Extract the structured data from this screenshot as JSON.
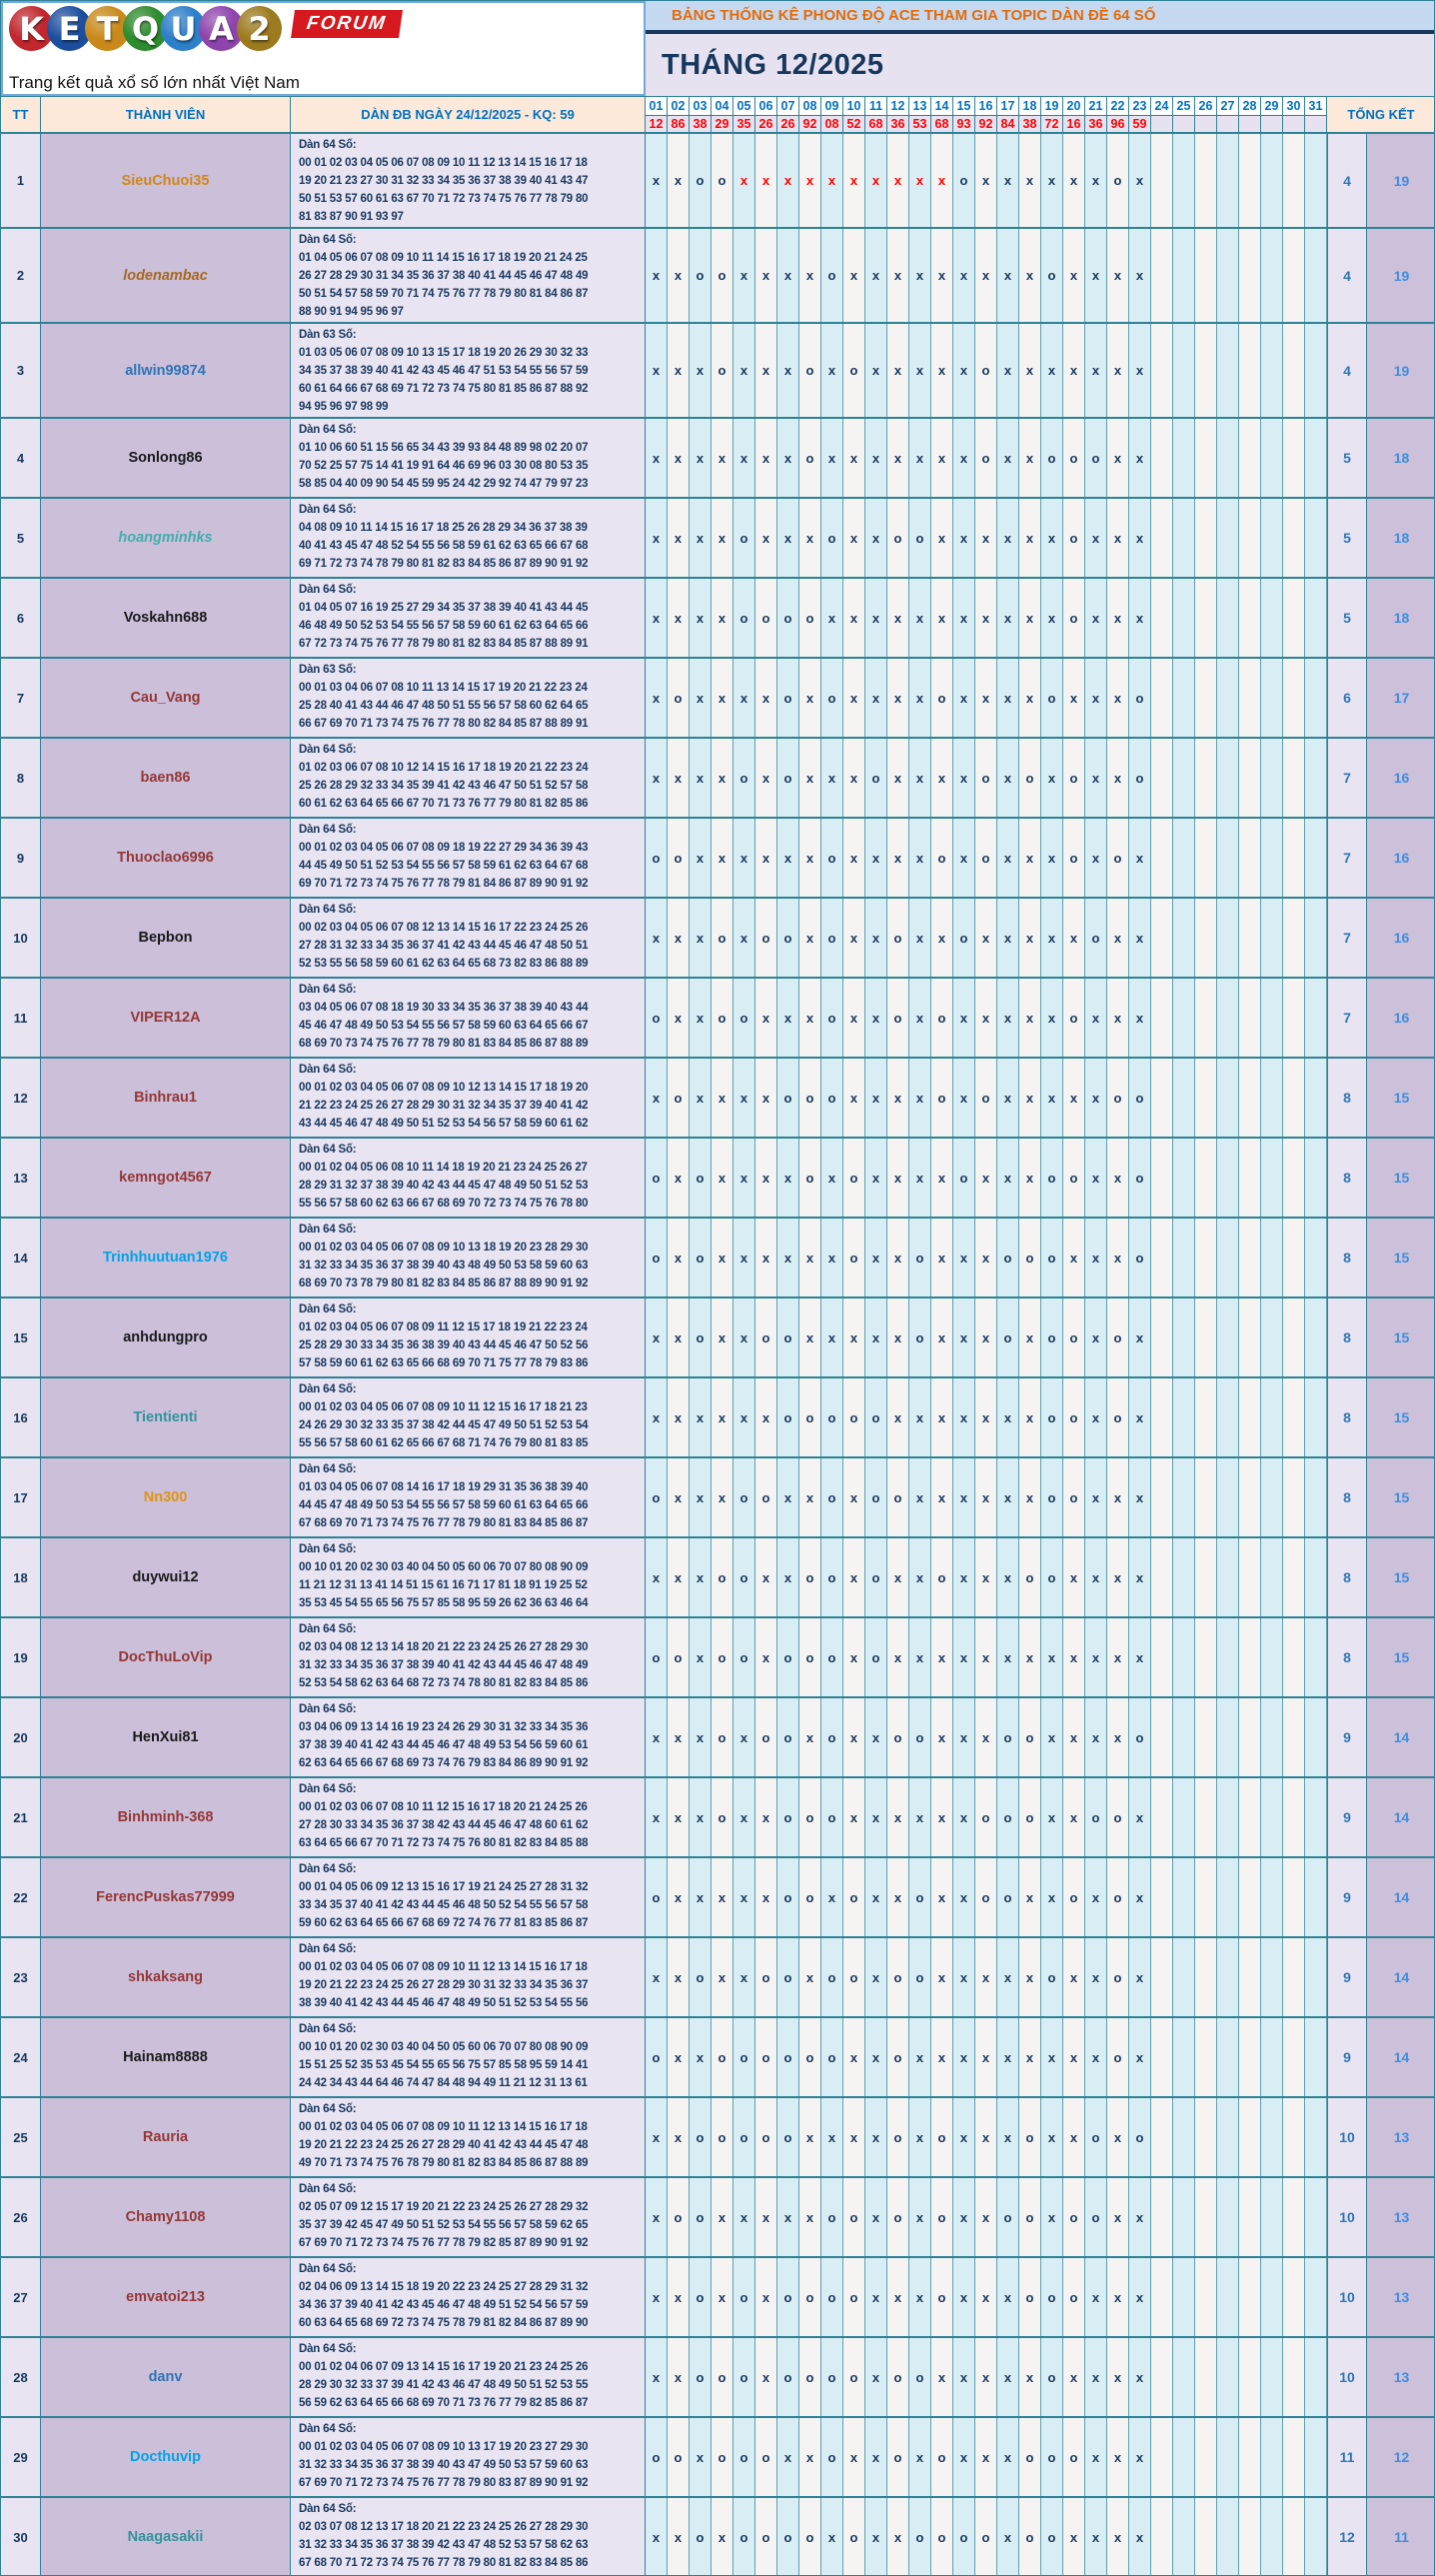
{
  "logo": {
    "letters": [
      {
        "ch": "K",
        "color": "#C1272D"
      },
      {
        "ch": "E",
        "color": "#1D4E9E"
      },
      {
        "ch": "T",
        "color": "#C98A1B"
      },
      {
        "ch": "Q",
        "color": "#2E8B2E"
      },
      {
        "ch": "U",
        "color": "#2C7FC9"
      },
      {
        "ch": "A",
        "color": "#8E44AD"
      },
      {
        "ch": "2",
        "color": "#9C7A1E"
      }
    ],
    "forum_badge": "FORUM",
    "tagline": "Trang kết quả xổ số lớn nhất Việt Nam"
  },
  "header": {
    "title": "BẢNG THỐNG KÊ PHONG ĐỘ ACE THAM GIA TOPIC DÀN ĐỀ 64 SỐ",
    "month": "THÁNG 12/2025",
    "title_color": "#E36C0A",
    "month_color": "#17375D"
  },
  "columns": {
    "tt": "TT",
    "member": "THÀNH VIÊN",
    "dan": "DÀN ĐB NGÀY 24/12/2025 - KQ: 59",
    "total": "TỔNG KẾT"
  },
  "days": [
    "01",
    "02",
    "03",
    "04",
    "05",
    "06",
    "07",
    "08",
    "09",
    "10",
    "11",
    "12",
    "13",
    "14",
    "15",
    "16",
    "17",
    "18",
    "19",
    "20",
    "21",
    "22",
    "23",
    "24",
    "25",
    "26",
    "27",
    "28",
    "29",
    "30",
    "31"
  ],
  "results": [
    "12",
    "86",
    "38",
    "29",
    "35",
    "26",
    "26",
    "92",
    "08",
    "52",
    "68",
    "36",
    "53",
    "68",
    "93",
    "92",
    "84",
    "38",
    "72",
    "16",
    "36",
    "96",
    "59",
    "",
    "",
    "",
    "",
    "",
    "",
    "",
    ""
  ],
  "mark_colors": {
    "normal": "#17375D",
    "red": "#FF0000"
  },
  "rows": [
    {
      "tt": "1",
      "name": "SieuChuoi35",
      "color": "#D18719",
      "italic": false,
      "label": "Dàn 64 Số:",
      "lines": [
        "00 01 02 03 04 05 06 07 08 09 10 11 12 13 14 15 16 17 18",
        "19 20 21 23 27 30 31 32 33 34 35 36 37 38 39 40 41 43 47",
        "50 51 53 57 60 61 63 67 70 71 72 73 74 75 76 77 78 79 80",
        "81 83 87 90 91 93 97"
      ],
      "marks": "xxooXXXXXXXXXXoxxxxxxox",
      "totals": [
        "4",
        "19"
      ]
    },
    {
      "tt": "2",
      "name": "lodenambac",
      "color": "#A66A1F",
      "italic": true,
      "label": "Dàn 64 Số:",
      "lines": [
        "01 04 05 06 07 08 09 10 11 14 15 16 17 18 19 20 21 24 25",
        "26 27 28 29 30 31 34 35 36 37 38 40 41 44 45 46 47 48 49",
        "50 51 54 57 58 59 70 71 74 75 76 77 78 79 80 81 84 86 87",
        "88 90 91 94 95 96 97"
      ],
      "marks": "xxooxxxxoxxxxxxxxxoxxxx",
      "totals": [
        "4",
        "19"
      ]
    },
    {
      "tt": "3",
      "name": "allwin99874",
      "color": "#2E74B5",
      "italic": false,
      "label": "Dàn 63 Số:",
      "lines": [
        "01 03 05 06 07 08 09 10 13 15 17 18 19 20 26 29 30 32 33",
        "34 35 37 38 39 40 41 42 43 45 46 47 51 53 54 55 56 57 59",
        "60 61 64 66 67 68 69 71 72 73 74 75 80 81 85 86 87 88 92",
        "94 95 96 97 98 99"
      ],
      "marks": "xxxoxxxoxoxxxxxoxxxxxxx",
      "totals": [
        "4",
        "19"
      ]
    },
    {
      "tt": "4",
      "name": "Sonlong86",
      "color": "#1A1A1A",
      "italic": false,
      "label": "Dàn 64 Số:",
      "lines": [
        "01 10 06 60 51 15 56 65 34 43 39 93 84 48 89 98 02 20 07",
        "70 52 25 57 75 14 41 19 91 64 46 69 96 03 30 08 80 53 35",
        "58 85 04 40 09 90 54 45 59 95 24 42 29 92 74 47 79 97 23"
      ],
      "marks": "xxxxxxxoxxxxxxxoxxoooxx",
      "totals": [
        "5",
        "18"
      ]
    },
    {
      "tt": "5",
      "name": "hoangminhks",
      "color": "#3FB0AC",
      "italic": true,
      "label": "Dàn 64 Số:",
      "lines": [
        "04 08 09 10 11 14 15 16 17 18 25 26 28 29 34 36 37 38 39",
        "40 41 43 45 47 48 52 54 55 56 58 59 61 62 63 65 66 67 68",
        "69 71 72 73 74 78 79 80 81 82 83 84 85 86 87 89 90 91 92"
      ],
      "marks": "xxxxoxxxoxxooxxxxxxoxxx",
      "totals": [
        "5",
        "18"
      ]
    },
    {
      "tt": "6",
      "name": "Voskahn688",
      "color": "#1A1A1A",
      "italic": false,
      "label": "Dàn 64 Số:",
      "lines": [
        "01 04 05 07 16 19 25 27 29 34 35 37 38 39 40 41 43 44 45",
        "46 48 49 50 52 53 54 55 56 57 58 59 60 61 62 63 64 65 66",
        "67 72 73 74 75 76 77 78 79 80 81 82 83 84 85 87 88 89 91"
      ],
      "marks": "xxxxooooxxxxxxxxxxxoxxx",
      "totals": [
        "5",
        "18"
      ]
    },
    {
      "tt": "7",
      "name": "Cau_Vang",
      "color": "#953735",
      "italic": false,
      "label": "Dàn 63 Số:",
      "lines": [
        "00 01 03 04 06 07 08 10 11 13 14 15 17 19 20 21 22 23 24",
        "25 28 40 41 43 44 46 47 48 50 51 55 56 57 58 60 62 64 65",
        "66 67 69 70 71 73 74 75 76 77 78 80 82 84 85 87 88 89 91"
      ],
      "marks": "xoxxxxoxoxxxxoxxxxoxxxo",
      "totals": [
        "6",
        "17"
      ]
    },
    {
      "tt": "8",
      "name": "baen86",
      "color": "#953735",
      "italic": false,
      "label": "Dàn 64 Số:",
      "lines": [
        "01 02 03 06 07 08 10 12 14 15 16 17 18 19 20 21 22 23 24",
        "25 26 28 29 32 33 34 35 39 41 42 43 46 47 50 51 52 57 58",
        "60 61 62 63 64 65 66 67 70 71 73 76 77 79 80 81 82 85 86"
      ],
      "marks": "xxxxoxoxxxoxxxxoxoxoxxo",
      "totals": [
        "7",
        "16"
      ]
    },
    {
      "tt": "9",
      "name": "Thuoclao6996",
      "color": "#953735",
      "italic": false,
      "label": "Dàn 64 Số:",
      "lines": [
        "00 01 02 03 04 05 06 07 08 09 18 19 22 27 29 34 36 39 43",
        "44 45 49 50 51 52 53 54 55 56 57 58 59 61 62 63 64 67 68",
        "69 70 71 72 73 74 75 76 77 78 79 81 84 86 87 89 90 91 92"
      ],
      "marks": "ooxxxxxxoxxxxoxoxxxoxox",
      "totals": [
        "7",
        "16"
      ]
    },
    {
      "tt": "10",
      "name": "Bepbon",
      "color": "#1A1A1A",
      "italic": false,
      "label": "Dàn 64 Số:",
      "lines": [
        "00 02 03 04 05 06 07 08 12 13 14 15 16 17 22 23 24 25 26",
        "27 28 31 32 33 34 35 36 37 41 42 43 44 45 46 47 48 50 51",
        "52 53 55 56 58 59 60 61 62 63 64 65 68 73 82 83 86 88 89"
      ],
      "marks": "xxxoxooxoxxoxxoxxxxxoxx",
      "totals": [
        "7",
        "16"
      ]
    },
    {
      "tt": "11",
      "name": "VIPER12A",
      "color": "#953735",
      "italic": false,
      "label": "Dàn 64 Số:",
      "lines": [
        "03 04 05 06 07 08 18 19 30 33 34 35 36 37 38 39 40 43 44",
        "45 46 47 48 49 50 53 54 55 56 57 58 59 60 63 64 65 66 67",
        "68 69 70 73 74 75 76 77 78 79 80 81 83 84 85 86 87 88 89"
      ],
      "marks": "oxxooxxxoxxoxoxxxxxoxxx",
      "totals": [
        "7",
        "16"
      ]
    },
    {
      "tt": "12",
      "name": "Binhrau1",
      "color": "#953735",
      "italic": false,
      "label": "Dàn 64 Số:",
      "lines": [
        "00 01 02 03 04 05 06 07 08 09 10 12 13 14 15 17 18 19 20",
        "21 22 23 24 25 26 27 28 29 30 31 32 34 35 37 39 40 41 42",
        "43 44 45 46 47 48 49 50 51 52 53 54 56 57 58 59 60 61 62"
      ],
      "marks": "xoxxxxoooxxxxoxoxxxxxoo",
      "totals": [
        "8",
        "15"
      ]
    },
    {
      "tt": "13",
      "name": "kemngot4567",
      "color": "#953735",
      "italic": false,
      "label": "Dàn 64 Số:",
      "lines": [
        "00 01 02 04 05 06 08 10 11 14 18 19 20 21 23 24 25 26 27",
        "28 29 31 32 37 38 39 40 42 43 44 45 47 48 49 50 51 52 53",
        "55 56 57 58 60 62 63 66 67 68 69 70 72 73 74 75 76 78 80"
      ],
      "marks": "oxoxxxxoxoxxxxoxxxooxxo",
      "totals": [
        "8",
        "15"
      ]
    },
    {
      "tt": "14",
      "name": "Trinhhuutuan1976",
      "color": "#00A3E8",
      "italic": false,
      "label": "Dàn 64 Số:",
      "lines": [
        "00 01 02 03 04 05 06 07 08 09 10 13 18 19 20 23 28 29 30",
        "31 32 33 34 35 36 37 38 39 40 43 48 49 50 53 58 59 60 63",
        "68 69 70 73 78 79 80 81 82 83 84 85 86 87 88 89 90 91 92"
      ],
      "marks": "oxoxxxxxxoxxoxxxoooxxxo",
      "totals": [
        "8",
        "15"
      ]
    },
    {
      "tt": "15",
      "name": "anhdungpro",
      "color": "#1A1A1A",
      "italic": false,
      "label": "Dàn 64 Số:",
      "lines": [
        "01 02 03 04 05 06 07 08 09 11 12 15 17 18 19 21 22 23 24",
        "25 28 29 30 33 34 35 36 38 39 40 43 44 45 46 47 50 52 56",
        "57 58 59 60 61 62 63 65 66 68 69 70 71 75 77 78 79 83 86"
      ],
      "marks": "xxoxxooxxxxxoxxxoxooxox",
      "totals": [
        "8",
        "15"
      ]
    },
    {
      "tt": "16",
      "name": "Tientienti",
      "color": "#31949B",
      "italic": false,
      "label": "Dàn 64 Số:",
      "lines": [
        "00 01 02 03 04 05 06 07 08 09 10 11 12 15 16 17 18 21 23",
        "24 26 29 30 32 33 35 37 38 42 44 45 47 49 50 51 52 53 54",
        "55 56 57 58 60 61 62 65 66 67 68 71 74 76 79 80 81 83 85"
      ],
      "marks": "xxxxxxoooooxxxxxxxooxox",
      "totals": [
        "8",
        "15"
      ]
    },
    {
      "tt": "17",
      "name": "Nn300",
      "color": "#E1940F",
      "italic": false,
      "label": "Dàn 64 Số:",
      "lines": [
        "01 03 04 05 06 07 08 14 16 17 18 19 29 31 35 36 38 39 40",
        "44 45 47 48 49 50 53 54 55 56 57 58 59 60 61 63 64 65 66",
        "67 68 69 70 71 73 74 75 76 77 78 79 80 81 83 84 85 86 87"
      ],
      "marks": "oxxxooxxoxooxxxxxxooxxx",
      "totals": [
        "8",
        "15"
      ]
    },
    {
      "tt": "18",
      "name": "duywui12",
      "color": "#1A1A1A",
      "italic": false,
      "label": "Dàn 64 Số:",
      "lines": [
        "00 10 01 20 02 30 03 40 04 50 05 60 06 70 07 80 08 90 09",
        "11 21 12 31 13 41 14 51 15 61 16 71 17 81 18 91 19 25 52",
        "35 53 45 54 55 65 56 75 57 85 58 95 59 26 62 36 63 46 64"
      ],
      "marks": "xxxooxxooxoxxoxxxooxxxx",
      "totals": [
        "8",
        "15"
      ]
    },
    {
      "tt": "19",
      "name": "DocThuLoVip",
      "color": "#953735",
      "italic": false,
      "label": "Dàn 64 Số:",
      "lines": [
        "02 03 04 08 12 13 14 18 20 21 22 23 24 25 26 27 28 29 30",
        "31 32 33 34 35 36 37 38 39 40 41 42 43 44 45 46 47 48 49",
        "52 53 54 58 62 63 64 68 72 73 74 78 80 81 82 83 84 85 86"
      ],
      "marks": "ooxooxoooxoxxxxxxxxxxxx",
      "totals": [
        "8",
        "15"
      ]
    },
    {
      "tt": "20",
      "name": "HenXui81",
      "color": "#1A1A1A",
      "italic": false,
      "label": "Dàn 64 Số:",
      "lines": [
        "03 04 06 09 13 14 16 19 23 24 26 29 30 31 32 33 34 35 36",
        "37 38 39 40 41 42 43 44 45 46 47 48 49 53 54 56 59 60 61",
        "62 63 64 65 66 67 68 69 73 74 76 79 83 84 86 89 90 91 92"
      ],
      "marks": "xxxoxooxoxxooxxxooxxxxo",
      "totals": [
        "9",
        "14"
      ]
    },
    {
      "tt": "21",
      "name": "Binhminh-368",
      "color": "#953735",
      "italic": false,
      "label": "Dàn 64 Số:",
      "lines": [
        "00 01 02 03 06 07 08 10 11 12 15 16 17 18 20 21 24 25 26",
        "27 28 30 33 34 35 36 37 38 42 43 44 45 46 47 48 60 61 62",
        "63 64 65 66 67 70 71 72 73 74 75 76 80 81 82 83 84 85 88"
      ],
      "marks": "xxxoxxoooxxxxxxoooxxoox",
      "totals": [
        "9",
        "14"
      ]
    },
    {
      "tt": "22",
      "name": "FerencPuskas77999",
      "color": "#953735",
      "italic": false,
      "label": "Dàn 64 Số:",
      "lines": [
        "00 01 04 05 06 09 12 13 15 16 17 19 21 24 25 27 28 31 32",
        "33 34 35 37 40 41 42 43 44 45 46 48 50 52 54 55 56 57 58",
        "59 60 62 63 64 65 66 67 68 69 72 74 76 77 81 83 85 86 87"
      ],
      "marks": "oxxxxxooxoxxoxxooxxoxox",
      "totals": [
        "9",
        "14"
      ]
    },
    {
      "tt": "23",
      "name": "shkaksang",
      "color": "#953735",
      "italic": false,
      "label": "Dàn 64 Số:",
      "lines": [
        "00 01 02 03 04 05 06 07 08 09 10 11 12 13 14 15 16 17 18",
        "19 20 21 22 23 24 25 26 27 28 29 30 31 32 33 34 35 36 37",
        "38 39 40 41 42 43 44 45 46 47 48 49 50 51 52 53 54 55 56"
      ],
      "marks": "xxoxxooxooxooxxxxxoxxox",
      "totals": [
        "9",
        "14"
      ]
    },
    {
      "tt": "24",
      "name": "Hainam8888",
      "color": "#1A1A1A",
      "italic": false,
      "label": "Dàn 64 Số:",
      "lines": [
        "00 10 01 20 02 30 03 40 04 50 05 60 06 70 07 80 08 90 09",
        "15 51 25 52 35 53 45 54 55 65 56 75 57 85 58 95 59 14 41",
        "24 42 34 43 44 64 46 74 47 84 48 94 49 11 21 12 31 13 61"
      ],
      "marks": "oxxooooooxxoxxxxxxxxxox",
      "totals": [
        "9",
        "14"
      ]
    },
    {
      "tt": "25",
      "name": "Rauria",
      "color": "#953735",
      "italic": false,
      "label": "Dàn 64 Số:",
      "lines": [
        "00 01 02 03 04 05 06 07 08 09 10 11 12 13 14 15 16 17 18",
        "19 20 21 22 23 24 25 26 27 28 29 40 41 42 43 44 45 47 48",
        "49 70 71 73 74 75 76 78 79 80 81 82 83 84 85 86 87 88 89"
      ],
      "marks": "xxoooooxxxxoxoxxxoxxoxo",
      "totals": [
        "10",
        "13"
      ]
    },
    {
      "tt": "26",
      "name": "Chamy1108",
      "color": "#953735",
      "italic": false,
      "label": "Dàn 64 Số:",
      "lines": [
        "02 05 07 09 12 15 17 19 20 21 22 23 24 25 26 27 28 29 32",
        "35 37 39 42 45 47 49 50 51 52 53 54 55 56 57 58 59 62 65",
        "67 69 70 71 72 73 74 75 76 77 78 79 82 85 87 89 90 91 92"
      ],
      "marks": "xooxxxxxooxoxoxxooxooxx",
      "totals": [
        "10",
        "13"
      ]
    },
    {
      "tt": "27",
      "name": "emvatoi213",
      "color": "#953735",
      "italic": false,
      "label": "Dàn 64 Số:",
      "lines": [
        "02 04 06 09 13 14 15 18 19 20 22 23 24 25 27 28 29 31 32",
        "34 36 37 39 40 41 42 43 45 46 47 48 49 51 52 54 56 57 59",
        "60 63 64 65 68 69 72 73 74 75 78 79 81 82 84 86 87 89 90"
      ],
      "marks": "xxoxoxooooxxxoxxxoooxxx",
      "totals": [
        "10",
        "13"
      ]
    },
    {
      "tt": "28",
      "name": "danv",
      "color": "#2E74B5",
      "italic": false,
      "label": "Dàn 64 Số:",
      "lines": [
        "00 01 02 04 06 07 09 13 14 15 16 17 19 20 21 23 24 25 26",
        "28 29 30 32 33 37 39 41 42 43 46 47 48 49 50 51 52 53 55",
        "56 59 62 63 64 65 66 68 69 70 71 73 76 77 79 82 85 86 87"
      ],
      "marks": "xxoooxooooxooxxxxxoxxxx",
      "totals": [
        "10",
        "13"
      ]
    },
    {
      "tt": "29",
      "name": "Docthuvip",
      "color": "#00A3E8",
      "italic": false,
      "label": "Dàn 64 Số:",
      "lines": [
        "00 01 02 03 04 05 06 07 08 09 10 13 17 19 20 23 27 29 30",
        "31 32 33 34 35 36 37 38 39 40 43 47 49 50 53 57 59 60 63",
        "67 69 70 71 72 73 74 75 76 77 78 79 80 83 87 89 90 91 92"
      ],
      "marks": "ooxoooxxoxxoxoxxxoooxxx",
      "totals": [
        "11",
        "12"
      ]
    },
    {
      "tt": "30",
      "name": "Naagasakii",
      "color": "#31949B",
      "italic": false,
      "label": "Dàn 64 Số:",
      "lines": [
        "02 03 07 08 12 13 17 18 20 21 22 23 24 25 26 27 28 29 30",
        "31 32 33 34 35 36 37 38 39 42 43 47 48 52 53 57 58 62 63",
        "67 68 70 71 72 73 74 75 76 77 78 79 80 81 82 83 84 85 86"
      ],
      "marks": "xxoxooooxoxxooooxooxxxx",
      "totals": [
        "12",
        "11"
      ]
    }
  ]
}
